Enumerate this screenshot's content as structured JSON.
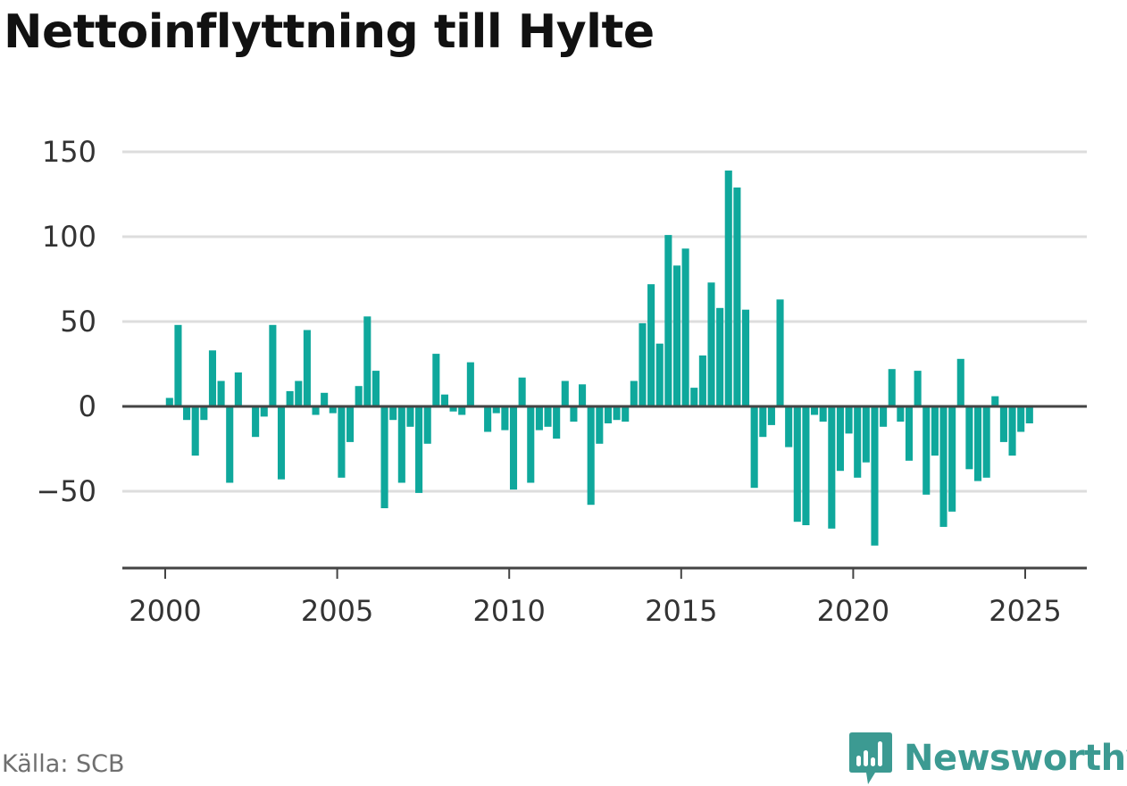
{
  "title": "Nettoinflyttning till Hylte",
  "source": "Källa: SCB",
  "brand": {
    "name": "Newsworthy",
    "icon": "newsworthy-logo-icon",
    "color": "#3c9a92"
  },
  "colors": {
    "bar": "#0fa89c",
    "grid": "#dddddd",
    "zero": "#444444",
    "axis": "#444444",
    "tick_text": "#333333"
  },
  "chart_data": {
    "type": "bar",
    "title": "Nettoinflyttning till Hylte",
    "xlabel": "",
    "ylabel": "",
    "ylim": [
      -95,
      150
    ],
    "xlim": [
      1999.2,
      2026.9
    ],
    "yticks": [
      150,
      100,
      50,
      0,
      -50
    ],
    "ytick_labels": [
      "150",
      "100",
      "50",
      "0",
      "−50"
    ],
    "xticks": [
      2000,
      2005,
      2010,
      2015,
      2020,
      2025
    ],
    "xtick_labels": [
      "2000",
      "2005",
      "2010",
      "2015",
      "2020",
      "2025"
    ],
    "grid": true,
    "legend": "none",
    "bar_width": 0.21,
    "x": [
      2000.125,
      2000.375,
      2000.625,
      2000.875,
      2001.125,
      2001.375,
      2001.625,
      2001.875,
      2002.125,
      2002.375,
      2002.625,
      2002.875,
      2003.125,
      2003.375,
      2003.625,
      2003.875,
      2004.125,
      2004.375,
      2004.625,
      2004.875,
      2005.125,
      2005.375,
      2005.625,
      2005.875,
      2006.125,
      2006.375,
      2006.625,
      2006.875,
      2007.125,
      2007.375,
      2007.625,
      2007.875,
      2008.125,
      2008.375,
      2008.625,
      2008.875,
      2009.125,
      2009.375,
      2009.625,
      2009.875,
      2010.125,
      2010.375,
      2010.625,
      2010.875,
      2011.125,
      2011.375,
      2011.625,
      2011.875,
      2012.125,
      2012.375,
      2012.625,
      2012.875,
      2013.125,
      2013.375,
      2013.625,
      2013.875,
      2014.125,
      2014.375,
      2014.625,
      2014.875,
      2015.125,
      2015.375,
      2015.625,
      2015.875,
      2016.125,
      2016.375,
      2016.625,
      2016.875,
      2017.125,
      2017.375,
      2017.625,
      2017.875,
      2018.125,
      2018.375,
      2018.625,
      2018.875,
      2019.125,
      2019.375,
      2019.625,
      2019.875,
      2020.125,
      2020.375,
      2020.625,
      2020.875,
      2021.125,
      2021.375,
      2021.625,
      2021.875,
      2022.125,
      2022.375,
      2022.625,
      2022.875,
      2023.125,
      2023.375,
      2023.625,
      2023.875,
      2024.125,
      2024.375,
      2024.625,
      2024.875,
      2025.125,
      2025.375
    ],
    "values": [
      5,
      48,
      -8,
      -29,
      -8,
      33,
      15,
      -45,
      20,
      0,
      -18,
      -6,
      48,
      -43,
      9,
      15,
      45,
      -5,
      8,
      -4,
      -42,
      -21,
      12,
      53,
      21,
      -60,
      -8,
      -45,
      -12,
      -51,
      -22,
      31,
      7,
      -3,
      -5,
      26,
      0,
      -15,
      -4,
      -14,
      -49,
      17,
      -45,
      -14,
      -12,
      -19,
      15,
      -9,
      13,
      -58,
      -22,
      -10,
      -8,
      -9,
      15,
      49,
      72,
      37,
      101,
      83,
      93,
      11,
      30,
      73,
      58,
      139,
      129,
      57,
      -48,
      -18,
      -11,
      63,
      -24,
      -68,
      -70,
      -5,
      -9,
      -72,
      -38,
      -16,
      -42,
      -33,
      -82,
      -12,
      22,
      -9,
      -32,
      21,
      -52,
      -29,
      -71,
      -62,
      28,
      -37,
      -44,
      -42,
      6,
      -21,
      -29,
      -15,
      -10,
      0
    ]
  }
}
